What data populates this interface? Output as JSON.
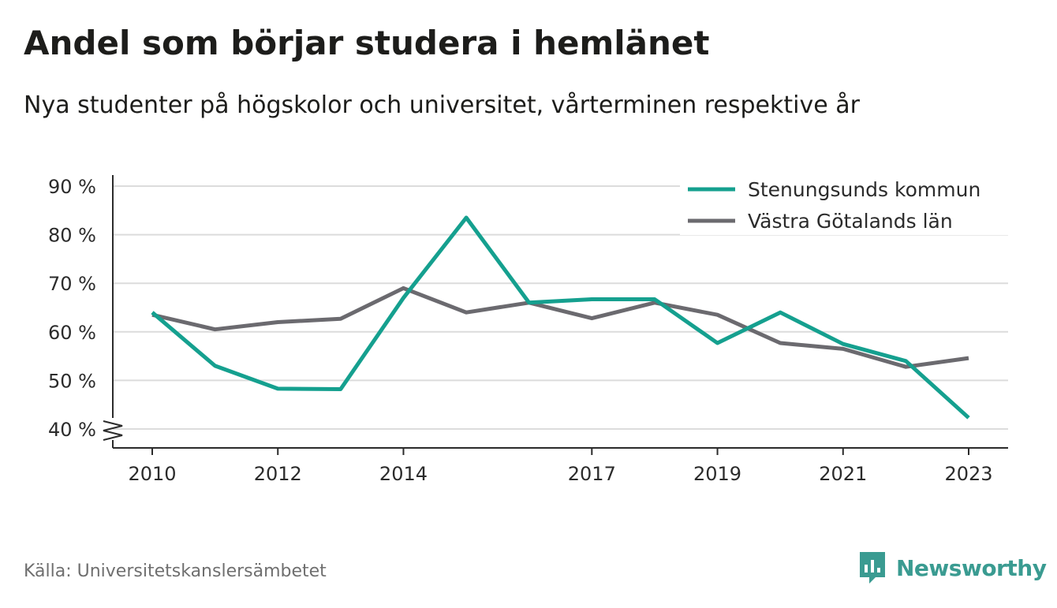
{
  "title": "Andel som börjar studera i hemlänet",
  "subtitle": "Nya studenter på högskolor och universitet, vårterminen respektive år",
  "source": "Källa: Universitetskanslersämbetet",
  "brand": {
    "name": "Newsworthy",
    "icon": "newsworthy-logo-icon",
    "color": "#3a9b91"
  },
  "chart_data": {
    "type": "line",
    "x": [
      2010,
      2011,
      2012,
      2013,
      2014,
      2015,
      2016,
      2017,
      2018,
      2019,
      2020,
      2021,
      2022,
      2023
    ],
    "x_ticks": [
      2010,
      2012,
      2014,
      2017,
      2019,
      2021,
      2023
    ],
    "y_ticks": [
      40,
      50,
      60,
      70,
      80,
      90
    ],
    "y_tick_suffix": " %",
    "ylim": [
      36,
      92
    ],
    "y_axis_break": true,
    "grid": true,
    "legend_position": "top-right",
    "series": [
      {
        "name": "Stenungsunds kommun",
        "color": "#15a08f",
        "values": [
          64,
          53,
          48.3,
          48.2,
          67,
          83.5,
          66,
          66.7,
          66.7,
          57.7,
          64,
          57.5,
          54,
          42.3
        ]
      },
      {
        "name": "Västra Götalands län",
        "color": "#6b6a6f",
        "values": [
          63.5,
          60.5,
          62,
          62.7,
          69,
          64,
          66,
          62.8,
          66,
          63.5,
          57.7,
          56.5,
          52.8,
          54.6
        ]
      }
    ]
  }
}
